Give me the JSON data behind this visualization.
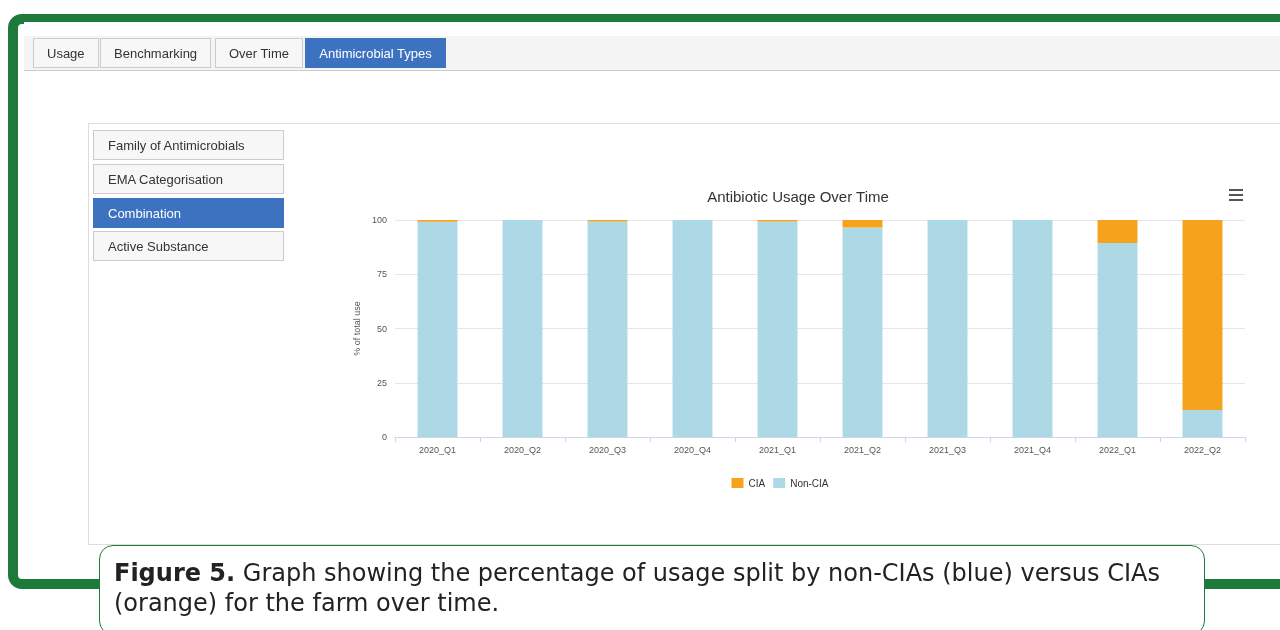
{
  "chart_data": {
    "type": "bar",
    "title": "Antibiotic Usage Over Time",
    "ylabel": "% of total use",
    "categories": [
      "2020_Q1",
      "2020_Q2",
      "2020_Q3",
      "2020_Q4",
      "2021_Q1",
      "2021_Q2",
      "2021_Q3",
      "2021_Q4",
      "2022_Q1",
      "2022_Q2"
    ],
    "series": [
      {
        "name": "Non-CIA",
        "color": "#add8e6",
        "values": [
          99.2,
          100,
          99.3,
          100,
          99.3,
          96.6,
          100,
          100,
          89.4,
          12.5
        ]
      },
      {
        "name": "CIA",
        "color": "#f5a31d",
        "values": [
          0.8,
          0,
          0.7,
          0,
          0.7,
          3.4,
          0,
          0,
          10.6,
          87.5
        ]
      }
    ],
    "stacked": true,
    "ylim": [
      0,
      100
    ],
    "yticks": [
      0,
      25,
      50,
      75,
      100
    ],
    "grid": "y",
    "legend": "bottom",
    "annotations": [
      "Usage",
      "Benchmarking",
      "Over Time",
      "Antimicrobial Types",
      "Family of Antimicrobials",
      "EMA Categorisation",
      "Combination",
      "Active Substance",
      "Figure 5. Graph showing the percentage of usage split by non-CIAs (blue) versus CIAs (orange) for the farm over time."
    ]
  }
}
